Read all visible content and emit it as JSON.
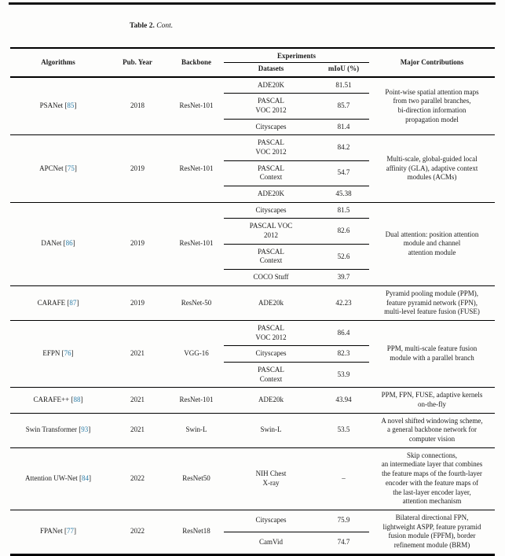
{
  "caption": {
    "label": "Table 2.",
    "cont": "Cont."
  },
  "accent": {
    "citation_color": "#2c7da8"
  },
  "table": {
    "headers": {
      "algorithms": "Algorithms",
      "pub_year": "Pub. Year",
      "backbone": "Backbone",
      "experiments": "Experiments",
      "datasets": "Datasets",
      "miou": "mIoU (%)",
      "contributions": "Major Contributions"
    },
    "groups": [
      {
        "name": "PSANet",
        "citation": "85",
        "year": "2018",
        "backbone": "ResNet-101",
        "rows": [
          {
            "dataset": "ADE20K",
            "miou": "81.51"
          },
          {
            "dataset": "PASCAL\nVOC 2012",
            "miou": "85.7"
          },
          {
            "dataset": "Cityscapes",
            "miou": "81.4"
          }
        ],
        "contribution": "Point-wise spatial attention maps\nfrom two parallel branches,\nbi-direction information\npropagation model"
      },
      {
        "name": "APCNet",
        "citation": "75",
        "year": "2019",
        "backbone": "ResNet-101",
        "rows": [
          {
            "dataset": "PASCAL\nVOC 2012",
            "miou": "84.2"
          },
          {
            "dataset": "PASCAL\nContext",
            "miou": "54.7"
          },
          {
            "dataset": "ADE20K",
            "miou": "45.38"
          }
        ],
        "contribution": "Multi-scale, global-guided local\naffinity (GLA), adaptive context\nmodules (ACMs)"
      },
      {
        "name": "DANet",
        "citation": "86",
        "year": "2019",
        "backbone": "ResNet-101",
        "rows": [
          {
            "dataset": "Cityscapes",
            "miou": "81.5"
          },
          {
            "dataset": "PASCAL VOC\n2012",
            "miou": "82.6"
          },
          {
            "dataset": "PASCAL\nContext",
            "miou": "52.6"
          },
          {
            "dataset": "COCO Stuff",
            "miou": "39.7"
          }
        ],
        "contribution": "Dual attention: position attention\nmodule and channel\nattention module"
      },
      {
        "name": "CARAFE",
        "citation": "87",
        "year": "2019",
        "backbone": "ResNet-50",
        "rows": [
          {
            "dataset": "ADE20k",
            "miou": "42.23"
          }
        ],
        "contribution": "Pyramid pooling module (PPM),\nfeature pyramid network (FPN),\nmulti-level feature fusion (FUSE)"
      },
      {
        "name": "EFPN",
        "citation": "76",
        "year": "2021",
        "backbone": "VGG-16",
        "rows": [
          {
            "dataset": "PASCAL\nVOC 2012",
            "miou": "86.4"
          },
          {
            "dataset": "Cityscapes",
            "miou": "82.3"
          },
          {
            "dataset": "PASCAL\nContext",
            "miou": "53.9"
          }
        ],
        "contribution": "PPM, multi-scale feature fusion\nmodule with a parallel branch"
      },
      {
        "name": "CARAFE++",
        "citation": "88",
        "year": "2021",
        "backbone": "ResNet-101",
        "rows": [
          {
            "dataset": "ADE20k",
            "miou": "43.94"
          }
        ],
        "contribution": "PPM, FPN, FUSE, adaptive kernels\non-the-fly"
      },
      {
        "name": "Swin Transformer",
        "citation": "93",
        "year": "2021",
        "backbone": "Swin-L",
        "rows": [
          {
            "dataset": "Swin-L",
            "miou": "53.5"
          }
        ],
        "contribution": "A novel shifted windowing scheme,\na general backbone network for\ncomputer vision"
      },
      {
        "name": "Attention UW-Net",
        "citation": "84",
        "year": "2022",
        "backbone": "ResNet50",
        "rows": [
          {
            "dataset": "NIH Chest\nX-ray",
            "miou": "–"
          }
        ],
        "contribution": "Skip connections,\nan intermediate layer that combines\nthe feature maps of the fourth-layer\nencoder with the feature maps of\nthe last-layer encoder layer,\nattention mechanism"
      },
      {
        "name": "FPANet",
        "citation": "77",
        "year": "2022",
        "backbone": "ResNet18",
        "rows": [
          {
            "dataset": "Cityscapes",
            "miou": "75.9"
          },
          {
            "dataset": "CamVid",
            "miou": "74.7"
          }
        ],
        "contribution": "Bilateral directional FPN,\nlightweight ASPP, feature pyramid\nfusion module (FPFM), border\nrefinement module (BRM)"
      }
    ]
  }
}
